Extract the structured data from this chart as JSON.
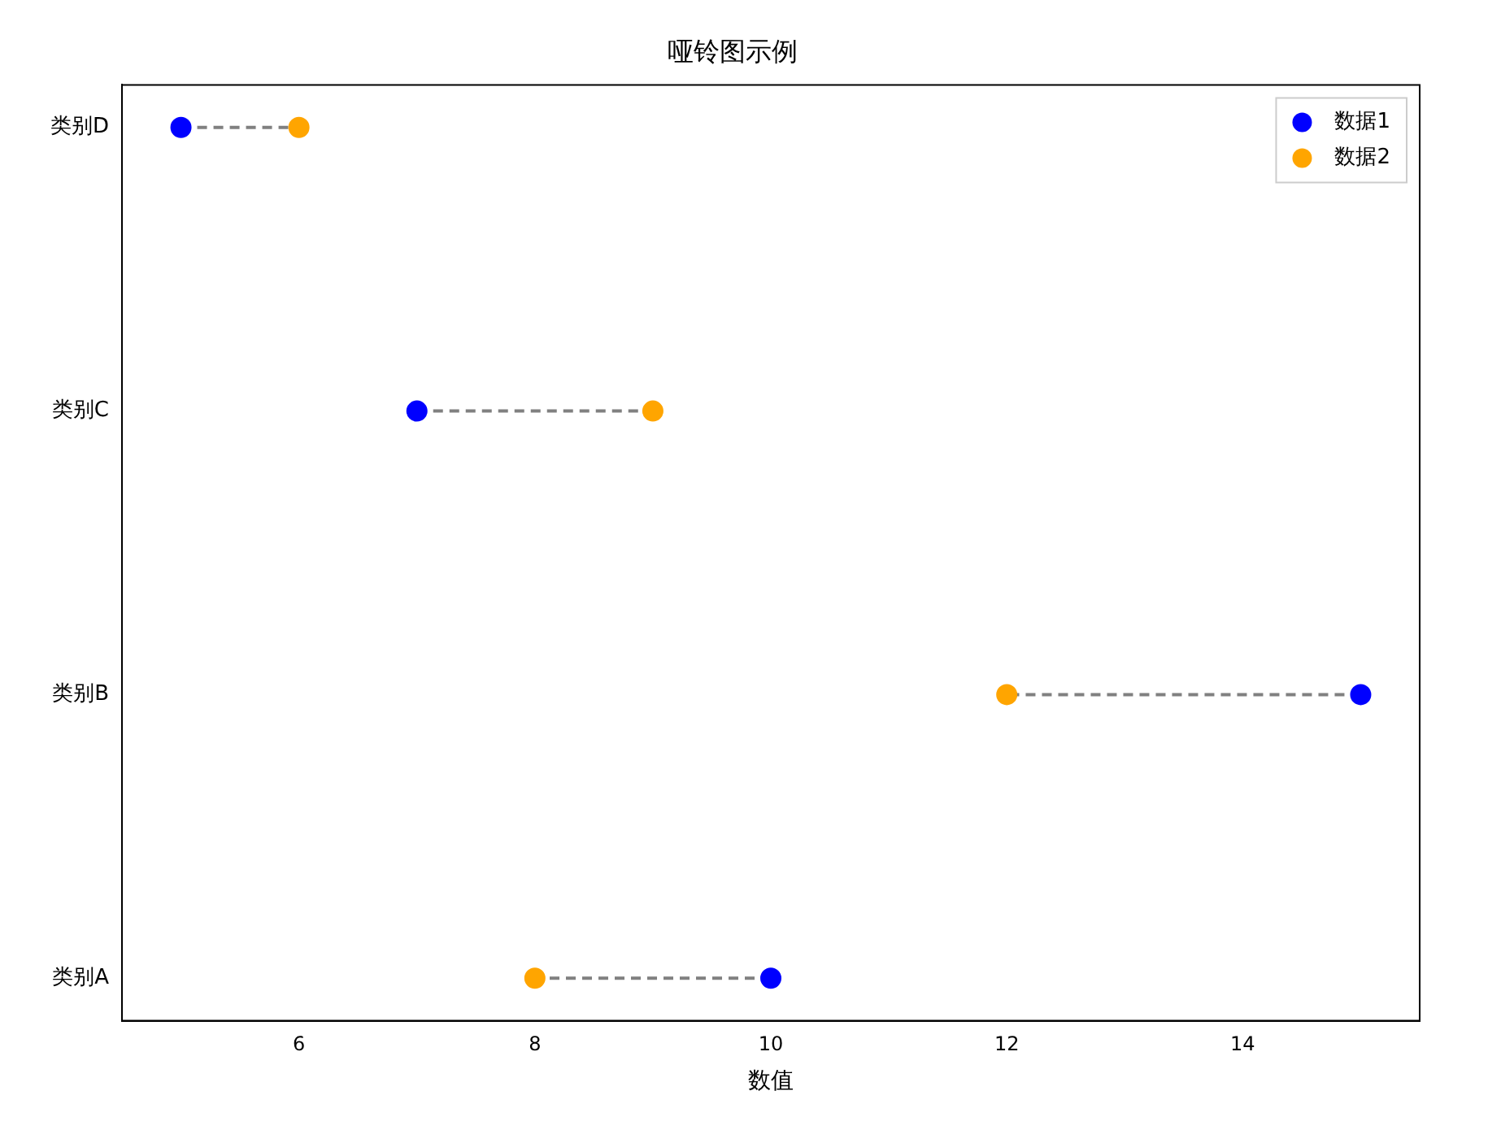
{
  "chart_data": {
    "type": "scatter",
    "title": "哑铃图示例",
    "xlabel": "数值",
    "orientation": "horizontal",
    "categories": [
      "类别D",
      "类别C",
      "类别B",
      "类别A"
    ],
    "series": [
      {
        "name": "数据1",
        "color": "#0000ff",
        "values": [
          5,
          7,
          15,
          10
        ]
      },
      {
        "name": "数据2",
        "color": "#ffa500",
        "values": [
          6,
          9,
          12,
          8
        ]
      }
    ],
    "xlim": [
      4.5,
      15.5
    ],
    "xticks": [
      6,
      8,
      10,
      12,
      14
    ],
    "grid": false,
    "legend": "top right",
    "marker": "circle",
    "line_style": "dashed"
  }
}
